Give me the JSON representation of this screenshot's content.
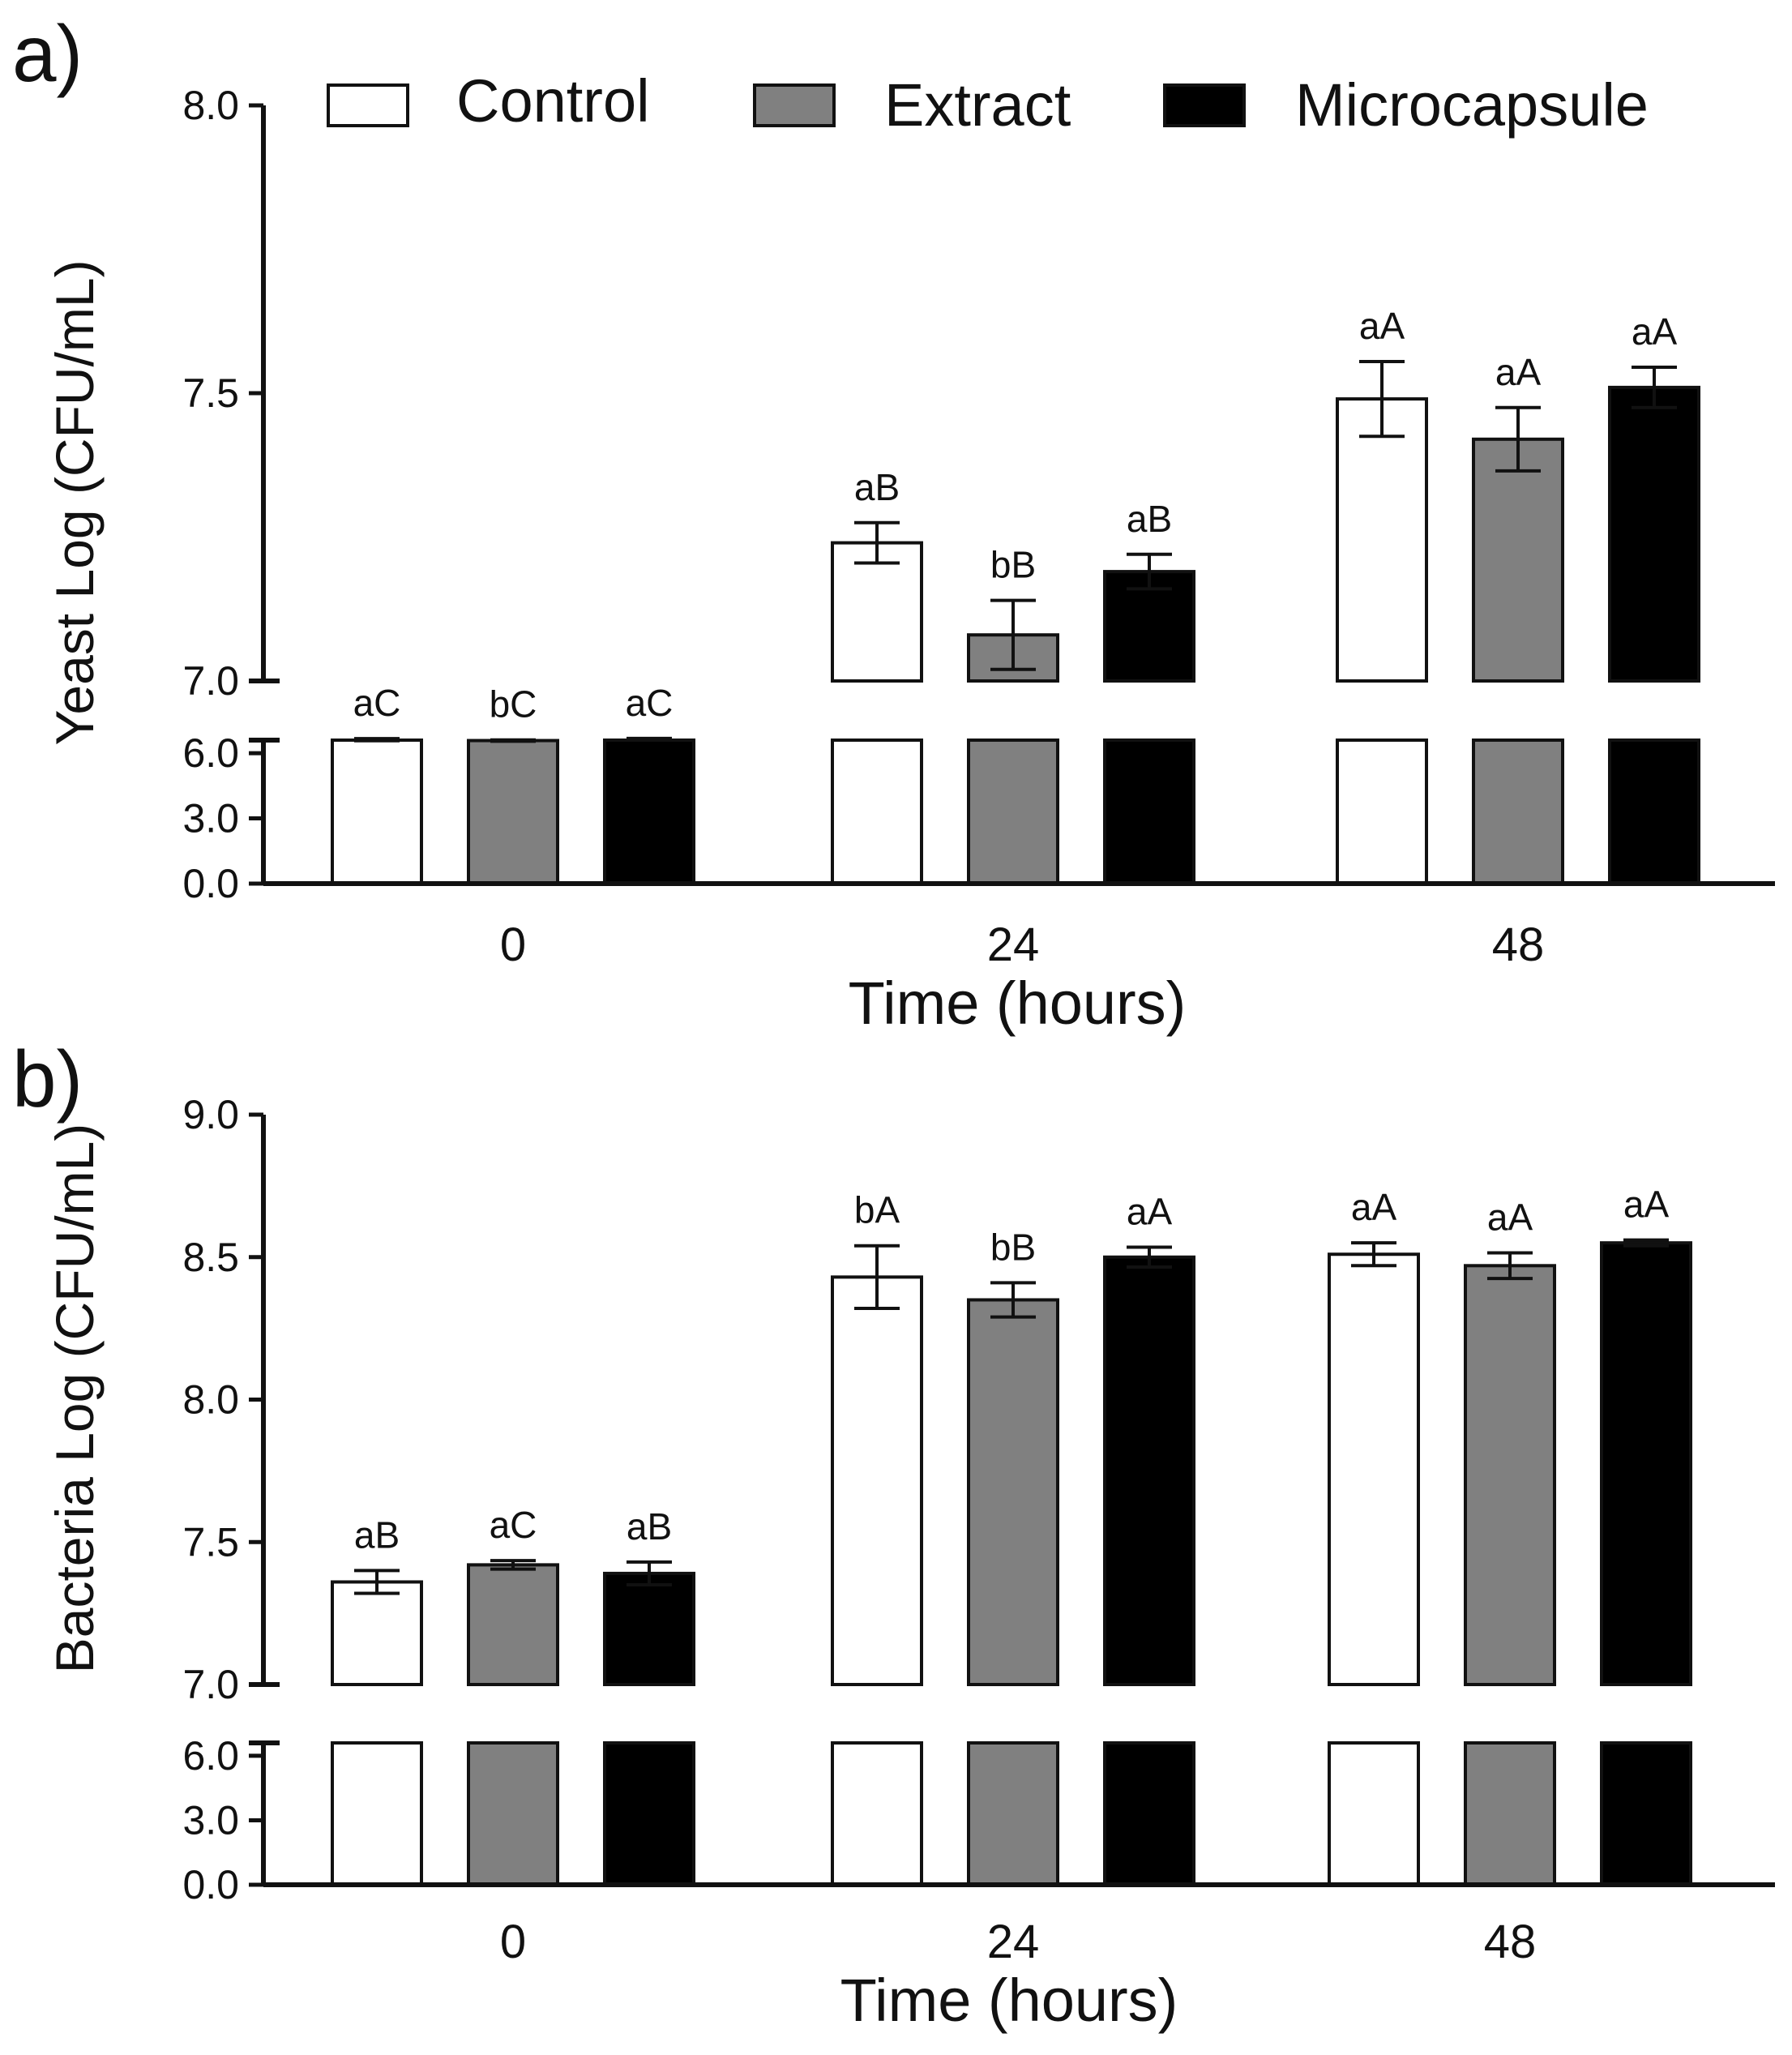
{
  "legend": [
    {
      "label": "Control",
      "color": "#ffffff"
    },
    {
      "label": "Extract",
      "color": "#808080"
    },
    {
      "label": "Microcapsule",
      "color": "#000000"
    }
  ],
  "chart_data": [
    {
      "type": "bar",
      "panel_label": "a)",
      "xlabel": "Time (hours)",
      "ylabel": "Yeast Log (CFU/mL)",
      "categories": [
        "0",
        "24",
        "48"
      ],
      "y_axis": {
        "broken": true,
        "lower_segment": {
          "range": [
            0,
            6.6
          ],
          "ticks": [
            0,
            3,
            6
          ],
          "tick_labels": [
            "0.0",
            "3.0",
            "6.0"
          ]
        },
        "upper_segment": {
          "range": [
            7.0,
            8.0
          ],
          "ticks": [
            7.0,
            7.5,
            8.0
          ],
          "tick_labels": [
            "7.0",
            "7.5",
            "8.0"
          ]
        }
      },
      "series": [
        {
          "name": "Control",
          "values": [
            6.62,
            7.24,
            7.49
          ],
          "errors": [
            0.05,
            0.035,
            0.065
          ],
          "labels": [
            "aC",
            "aB",
            "aA"
          ]
        },
        {
          "name": "Extract",
          "values": [
            6.58,
            7.08,
            7.42
          ],
          "errors": [
            0.03,
            0.06,
            0.055
          ],
          "labels": [
            "bC",
            "bB",
            "aA"
          ]
        },
        {
          "name": "Microcapsule",
          "values": [
            6.65,
            7.19,
            7.51
          ],
          "errors": [
            0.03,
            0.03,
            0.035
          ],
          "labels": [
            "aC",
            "aB",
            "aA"
          ]
        }
      ]
    },
    {
      "type": "bar",
      "panel_label": "b)",
      "xlabel": "Time (hours)",
      "ylabel": "Bacteria Log (CFU/mL)",
      "categories": [
        "0",
        "24",
        "48"
      ],
      "y_axis": {
        "broken": true,
        "lower_segment": {
          "range": [
            0,
            6.6
          ],
          "ticks": [
            0,
            3,
            6
          ],
          "tick_labels": [
            "0.0",
            "3.0",
            "6.0"
          ]
        },
        "upper_segment": {
          "range": [
            7.0,
            9.0
          ],
          "ticks": [
            7.0,
            7.5,
            8.0,
            8.5,
            9.0
          ],
          "tick_labels": [
            "7.0",
            "7.5",
            "8.0",
            "8.5",
            "9.0"
          ]
        }
      },
      "series": [
        {
          "name": "Control",
          "values": [
            7.36,
            8.43,
            8.51
          ],
          "errors": [
            0.04,
            0.11,
            0.04
          ],
          "labels": [
            "aB",
            "bA",
            "aA"
          ]
        },
        {
          "name": "Extract",
          "values": [
            7.42,
            8.35,
            8.47
          ],
          "errors": [
            0.015,
            0.06,
            0.045
          ],
          "labels": [
            "aC",
            "bB",
            "aA"
          ]
        },
        {
          "name": "Microcapsule",
          "values": [
            7.39,
            8.5,
            8.55
          ],
          "errors": [
            0.04,
            0.035,
            0.01
          ],
          "labels": [
            "aB",
            "aA",
            "aA"
          ]
        }
      ]
    }
  ]
}
